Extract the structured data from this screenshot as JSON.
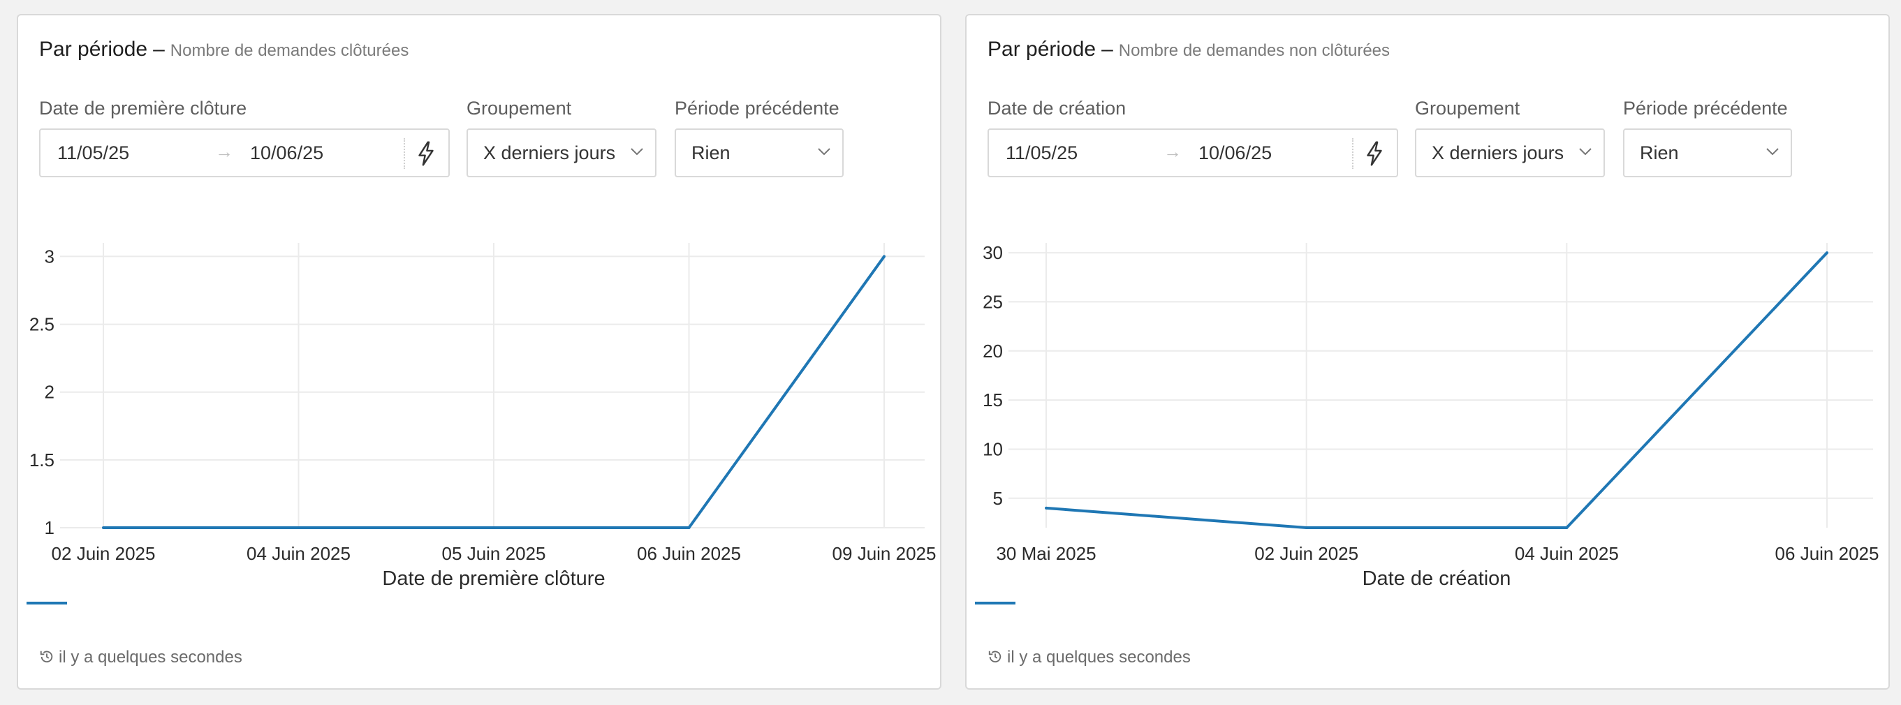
{
  "colors": {
    "series": "#1f77b4",
    "grid": "#ebebeb",
    "border": "#d9d9d9"
  },
  "icons": {
    "bolt": "bolt-icon",
    "chevron": "chevron-down-icon",
    "history": "history-icon"
  },
  "panels": [
    {
      "title": "Par période",
      "separator": "–",
      "subtitle": "Nombre de demandes clôturées",
      "date_label": "Date de première clôture",
      "date_start": "11/05/25",
      "date_arrow": "→",
      "date_end": "10/06/25",
      "group_label": "Groupement",
      "group_value": "X derniers jours",
      "prev_label": "Période précédente",
      "prev_value": "Rien",
      "footer": "il y a quelques secondes"
    },
    {
      "title": "Par période",
      "separator": "–",
      "subtitle": "Nombre de demandes non clôturées",
      "date_label": "Date de création",
      "date_start": "11/05/25",
      "date_arrow": "→",
      "date_end": "10/06/25",
      "group_label": "Groupement",
      "group_value": "X derniers jours",
      "prev_label": "Période précédente",
      "prev_value": "Rien",
      "footer": "il y a quelques secondes"
    }
  ],
  "chart_data": [
    {
      "type": "line",
      "xlabel": "Date de première clôture",
      "ylabel": "",
      "x": [
        "02 Juin 2025",
        "04 Juin 2025",
        "05 Juin 2025",
        "06 Juin 2025",
        "09 Juin 2025"
      ],
      "series": [
        {
          "values": [
            1,
            1,
            1,
            1,
            3
          ]
        }
      ],
      "y_ticks": [
        1,
        1.5,
        2,
        2.5,
        3
      ],
      "y_tick_labels": [
        "1",
        "1.5",
        "2",
        "2.5",
        "3"
      ],
      "ylim": [
        1,
        3.1
      ],
      "grid": true,
      "legend": "bottom-left"
    },
    {
      "type": "line",
      "xlabel": "Date de création",
      "ylabel": "",
      "x": [
        "30 Mai 2025",
        "02 Juin 2025",
        "04 Juin 2025",
        "06 Juin 2025"
      ],
      "series": [
        {
          "values": [
            4,
            2,
            2,
            30
          ]
        }
      ],
      "y_ticks": [
        5,
        10,
        15,
        20,
        25,
        30
      ],
      "y_tick_labels": [
        "5",
        "10",
        "15",
        "20",
        "25",
        "30"
      ],
      "ylim": [
        2,
        31
      ],
      "grid": true,
      "legend": "bottom-left"
    }
  ]
}
